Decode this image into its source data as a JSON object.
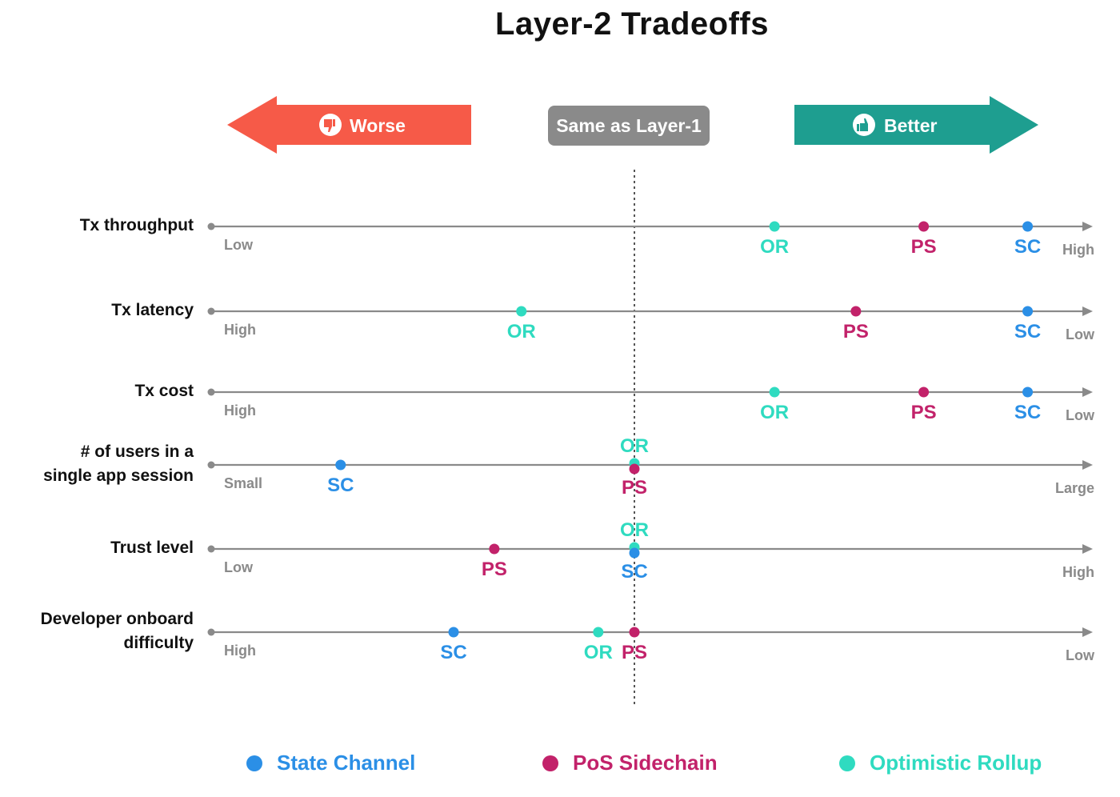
{
  "title": "Layer-2 Tradeoffs",
  "scale": {
    "worse_label": "Worse",
    "same_label": "Same as Layer-1",
    "better_label": "Better",
    "colors": {
      "worse": "#f65a48",
      "same": "#8a8a8a",
      "better": "#1e9e90"
    },
    "icons": {
      "worse": "thumbs-down-icon",
      "better": "thumbs-up-icon"
    }
  },
  "colors": {
    "sc": "#2b8fe6",
    "ps": "#c2226a",
    "or": "#2fdbc0",
    "axis": "#8a8a8a"
  },
  "chart_data": {
    "type": "scatter",
    "x_meaning": "position on a Worse-to-Better scale where 0 is Same as Layer-1 (left = worse, right = better)",
    "xlim": [
      -1,
      1
    ],
    "rows": [
      {
        "label": "Tx throughput",
        "left": "Low",
        "right": "High",
        "points": [
          {
            "series": "OR",
            "x": 0.31
          },
          {
            "series": "PS",
            "x": 0.64
          },
          {
            "series": "SC",
            "x": 0.87
          }
        ]
      },
      {
        "label": "Tx latency",
        "left": "High",
        "right": "Low",
        "points": [
          {
            "series": "OR",
            "x": -0.25
          },
          {
            "series": "PS",
            "x": 0.49
          },
          {
            "series": "SC",
            "x": 0.87
          }
        ]
      },
      {
        "label": "Tx cost",
        "left": "High",
        "right": "Low",
        "points": [
          {
            "series": "OR",
            "x": 0.31
          },
          {
            "series": "PS",
            "x": 0.64
          },
          {
            "series": "SC",
            "x": 0.87
          }
        ]
      },
      {
        "label": "# of users in a\nsingle app session",
        "left": "Small",
        "right": "Large",
        "points": [
          {
            "series": "SC",
            "x": -0.65
          },
          {
            "series": "OR",
            "x": 0.0
          },
          {
            "series": "PS",
            "x": 0.0
          }
        ]
      },
      {
        "label": "Trust level",
        "left": "Low",
        "right": "High",
        "points": [
          {
            "series": "PS",
            "x": -0.31
          },
          {
            "series": "OR",
            "x": 0.0
          },
          {
            "series": "SC",
            "x": 0.0
          }
        ]
      },
      {
        "label": "Developer onboard\ndifficulty",
        "left": "High",
        "right": "Low",
        "points": [
          {
            "series": "SC",
            "x": -0.4
          },
          {
            "series": "OR",
            "x": -0.08
          },
          {
            "series": "PS",
            "x": 0.0
          }
        ]
      }
    ],
    "series": [
      {
        "key": "SC",
        "name": "State Channel"
      },
      {
        "key": "PS",
        "name": "PoS Sidechain"
      },
      {
        "key": "OR",
        "name": "Optimistic Rollup"
      }
    ]
  }
}
